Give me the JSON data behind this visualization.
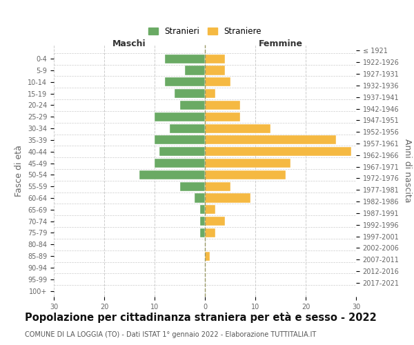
{
  "age_groups": [
    "0-4",
    "5-9",
    "10-14",
    "15-19",
    "20-24",
    "25-29",
    "30-34",
    "35-39",
    "40-44",
    "45-49",
    "50-54",
    "55-59",
    "60-64",
    "65-69",
    "70-74",
    "75-79",
    "80-84",
    "85-89",
    "90-94",
    "95-99",
    "100+"
  ],
  "birth_years": [
    "2017-2021",
    "2012-2016",
    "2007-2011",
    "2002-2006",
    "1997-2001",
    "1992-1996",
    "1987-1991",
    "1982-1986",
    "1977-1981",
    "1972-1976",
    "1967-1971",
    "1962-1966",
    "1957-1961",
    "1952-1956",
    "1947-1951",
    "1942-1946",
    "1937-1941",
    "1932-1936",
    "1927-1931",
    "1922-1926",
    "≤ 1921"
  ],
  "maschi": [
    8,
    4,
    8,
    6,
    5,
    10,
    7,
    10,
    9,
    10,
    13,
    5,
    2,
    1,
    1,
    1,
    0,
    0,
    0,
    0,
    0
  ],
  "femmine": [
    4,
    4,
    5,
    2,
    7,
    7,
    13,
    26,
    29,
    17,
    16,
    5,
    9,
    2,
    4,
    2,
    0,
    1,
    0,
    0,
    0
  ],
  "maschi_color": "#6aaa64",
  "femmine_color": "#f5b942",
  "title": "Popolazione per cittadinanza straniera per età e sesso - 2022",
  "subtitle": "COMUNE DI LA LOGGIA (TO) - Dati ISTAT 1° gennaio 2022 - Elaborazione TUTTITALIA.IT",
  "legend_maschi": "Stranieri",
  "legend_femmine": "Straniere",
  "xlabel_left": "Maschi",
  "xlabel_right": "Femmine",
  "ylabel_left": "Fasce di età",
  "ylabel_right": "Anni di nascita",
  "xlim": 30,
  "grid_color": "#cccccc",
  "background_color": "#ffffff",
  "title_fontsize": 10.5,
  "subtitle_fontsize": 7,
  "tick_fontsize": 7,
  "label_fontsize": 9
}
